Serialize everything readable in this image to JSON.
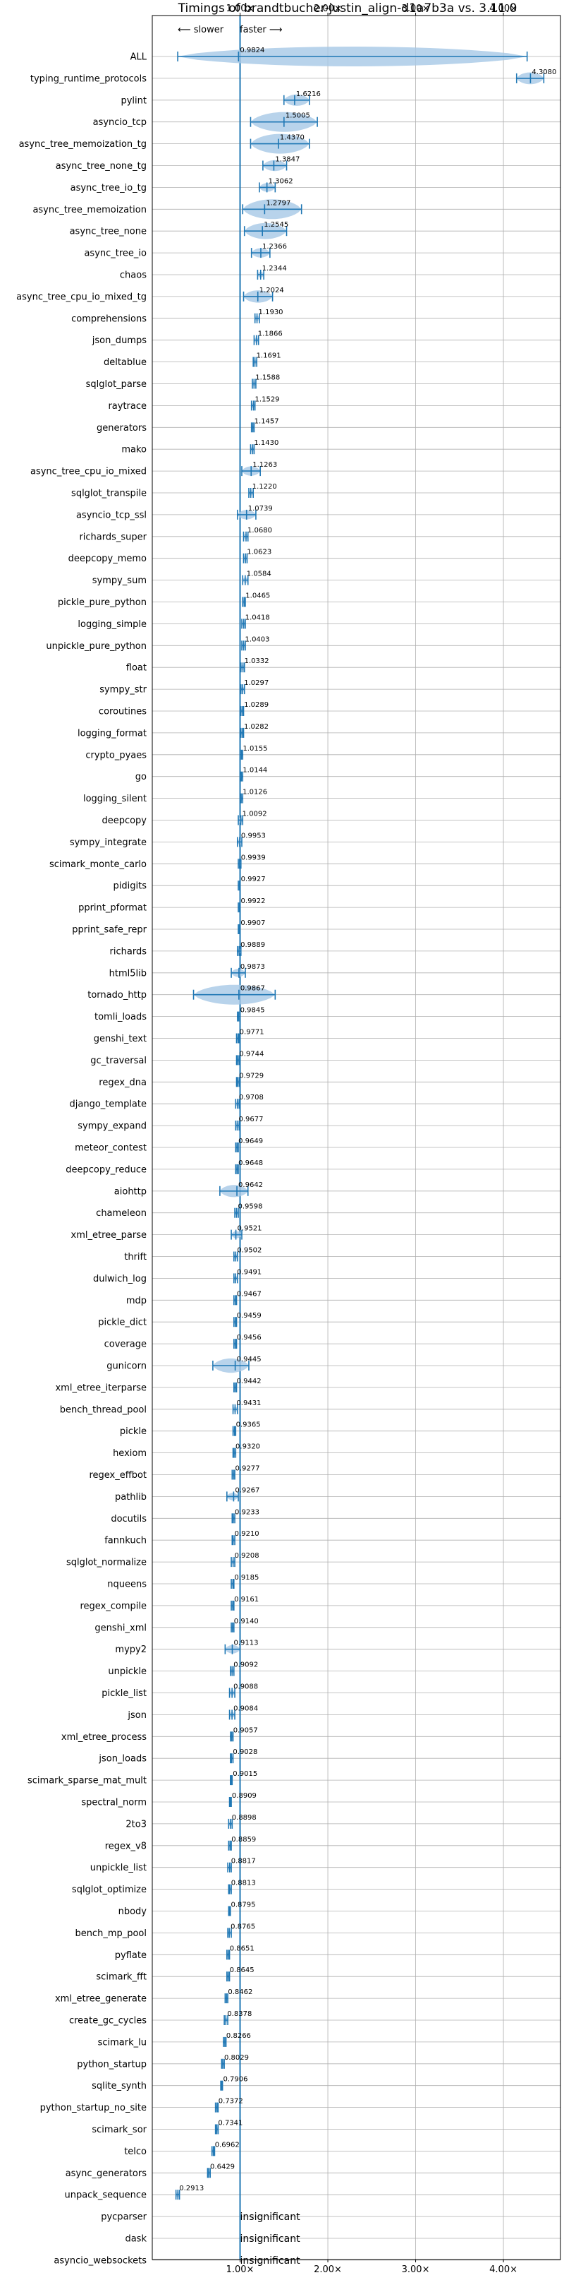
{
  "chart_data": {
    "type": "violin",
    "title": "Timings of brandtbucher-justin_align-d1a7b3a vs. 3.11.0",
    "xlabel": "",
    "ylabel": "",
    "xlim": [
      0.0,
      4.65
    ],
    "xticks": [
      1.0,
      2.0,
      3.0,
      4.0
    ],
    "xtick_labels": [
      "1.00×",
      "2.00×",
      "3.00×",
      "4.00×"
    ],
    "annotation_left": "⟵ slower",
    "annotation_right": "faster ⟶",
    "grid": true,
    "colors": {
      "violin": "#a6c8e6",
      "line": "#1f77b4",
      "axis_line": "#1f77b4",
      "grid": "#b0b0b0"
    },
    "insignificant_label": "insignificant",
    "benchmarks": [
      {
        "name": "ALL",
        "value": 0.9824,
        "label": "0.9824",
        "lo": 0.29,
        "hi": 4.27
      },
      {
        "name": "typing_runtime_protocols",
        "value": 4.308,
        "label": "4.3080",
        "lo": 4.15,
        "hi": 4.46
      },
      {
        "name": "pylint",
        "value": 1.6216,
        "label": "1.6216",
        "lo": 1.5,
        "hi": 1.79
      },
      {
        "name": "asyncio_tcp",
        "value": 1.5005,
        "label": "1.5005",
        "lo": 1.12,
        "hi": 1.88
      },
      {
        "name": "async_tree_memoization_tg",
        "value": 1.437,
        "label": "1.4370",
        "lo": 1.12,
        "hi": 1.79
      },
      {
        "name": "async_tree_none_tg",
        "value": 1.3847,
        "label": "1.3847",
        "lo": 1.26,
        "hi": 1.53
      },
      {
        "name": "async_tree_io_tg",
        "value": 1.3062,
        "label": "1.3062",
        "lo": 1.22,
        "hi": 1.4
      },
      {
        "name": "async_tree_memoization",
        "value": 1.2797,
        "label": "1.2797",
        "lo": 1.03,
        "hi": 1.7
      },
      {
        "name": "async_tree_none",
        "value": 1.2545,
        "label": "1.2545",
        "lo": 1.05,
        "hi": 1.53
      },
      {
        "name": "async_tree_io",
        "value": 1.2366,
        "label": "1.2366",
        "lo": 1.13,
        "hi": 1.34
      },
      {
        "name": "chaos",
        "value": 1.2344,
        "label": "1.2344",
        "lo": 1.2,
        "hi": 1.27
      },
      {
        "name": "async_tree_cpu_io_mixed_tg",
        "value": 1.2024,
        "label": "1.2024",
        "lo": 1.04,
        "hi": 1.37
      },
      {
        "name": "comprehensions",
        "value": 1.193,
        "label": "1.1930",
        "lo": 1.17,
        "hi": 1.22
      },
      {
        "name": "json_dumps",
        "value": 1.1866,
        "label": "1.1866",
        "lo": 1.16,
        "hi": 1.21
      },
      {
        "name": "deltablue",
        "value": 1.1691,
        "label": "1.1691",
        "lo": 1.15,
        "hi": 1.19
      },
      {
        "name": "sqlglot_parse",
        "value": 1.1588,
        "label": "1.1588",
        "lo": 1.14,
        "hi": 1.18
      },
      {
        "name": "raytrace",
        "value": 1.1529,
        "label": "1.1529",
        "lo": 1.13,
        "hi": 1.17
      },
      {
        "name": "generators",
        "value": 1.1457,
        "label": "1.1457",
        "lo": 1.13,
        "hi": 1.16
      },
      {
        "name": "mako",
        "value": 1.143,
        "label": "1.1430",
        "lo": 1.12,
        "hi": 1.16
      },
      {
        "name": "async_tree_cpu_io_mixed",
        "value": 1.1263,
        "label": "1.1263",
        "lo": 1.02,
        "hi": 1.23
      },
      {
        "name": "sqlglot_transpile",
        "value": 1.122,
        "label": "1.1220",
        "lo": 1.1,
        "hi": 1.15
      },
      {
        "name": "asyncio_tcp_ssl",
        "value": 1.0739,
        "label": "1.0739",
        "lo": 0.97,
        "hi": 1.18
      },
      {
        "name": "richards_super",
        "value": 1.068,
        "label": "1.0680",
        "lo": 1.04,
        "hi": 1.09
      },
      {
        "name": "deepcopy_memo",
        "value": 1.0623,
        "label": "1.0623",
        "lo": 1.04,
        "hi": 1.08
      },
      {
        "name": "sympy_sum",
        "value": 1.0584,
        "label": "1.0584",
        "lo": 1.03,
        "hi": 1.09
      },
      {
        "name": "pickle_pure_python",
        "value": 1.0465,
        "label": "1.0465",
        "lo": 1.03,
        "hi": 1.06
      },
      {
        "name": "logging_simple",
        "value": 1.0418,
        "label": "1.0418",
        "lo": 1.02,
        "hi": 1.06
      },
      {
        "name": "unpickle_pure_python",
        "value": 1.0403,
        "label": "1.0403",
        "lo": 1.02,
        "hi": 1.06
      },
      {
        "name": "float",
        "value": 1.0332,
        "label": "1.0332",
        "lo": 1.01,
        "hi": 1.05
      },
      {
        "name": "sympy_str",
        "value": 1.0297,
        "label": "1.0297",
        "lo": 1.01,
        "hi": 1.05
      },
      {
        "name": "coroutines",
        "value": 1.0289,
        "label": "1.0289",
        "lo": 1.01,
        "hi": 1.04
      },
      {
        "name": "logging_format",
        "value": 1.0282,
        "label": "1.0282",
        "lo": 1.01,
        "hi": 1.04
      },
      {
        "name": "crypto_pyaes",
        "value": 1.0155,
        "label": "1.0155",
        "lo": 1.0,
        "hi": 1.03
      },
      {
        "name": "go",
        "value": 1.0144,
        "label": "1.0144",
        "lo": 1.0,
        "hi": 1.03
      },
      {
        "name": "logging_silent",
        "value": 1.0126,
        "label": "1.0126",
        "lo": 1.0,
        "hi": 1.03
      },
      {
        "name": "deepcopy",
        "value": 1.0092,
        "label": "1.0092",
        "lo": 0.98,
        "hi": 1.03
      },
      {
        "name": "sympy_integrate",
        "value": 0.9953,
        "label": "0.9953",
        "lo": 0.97,
        "hi": 1.02
      },
      {
        "name": "scimark_monte_carlo",
        "value": 0.9939,
        "label": "0.9939",
        "lo": 0.98,
        "hi": 1.01
      },
      {
        "name": "pidigits",
        "value": 0.9927,
        "label": "0.9927",
        "lo": 0.98,
        "hi": 1.0
      },
      {
        "name": "pprint_pformat",
        "value": 0.9922,
        "label": "0.9922",
        "lo": 0.98,
        "hi": 1.0
      },
      {
        "name": "pprint_safe_repr",
        "value": 0.9907,
        "label": "0.9907",
        "lo": 0.98,
        "hi": 1.0
      },
      {
        "name": "richards",
        "value": 0.9889,
        "label": "0.9889",
        "lo": 0.97,
        "hi": 1.01
      },
      {
        "name": "html5lib",
        "value": 0.9873,
        "label": "0.9873",
        "lo": 0.9,
        "hi": 1.06
      },
      {
        "name": "tornado_http",
        "value": 0.9867,
        "label": "0.9867",
        "lo": 0.47,
        "hi": 1.4
      },
      {
        "name": "tomli_loads",
        "value": 0.9845,
        "label": "0.9845",
        "lo": 0.97,
        "hi": 1.0
      },
      {
        "name": "genshi_text",
        "value": 0.9771,
        "label": "0.9771",
        "lo": 0.96,
        "hi": 0.99
      },
      {
        "name": "gc_traversal",
        "value": 0.9744,
        "label": "0.9744",
        "lo": 0.96,
        "hi": 0.99
      },
      {
        "name": "regex_dna",
        "value": 0.9729,
        "label": "0.9729",
        "lo": 0.96,
        "hi": 0.99
      },
      {
        "name": "django_template",
        "value": 0.9708,
        "label": "0.9708",
        "lo": 0.95,
        "hi": 0.99
      },
      {
        "name": "sympy_expand",
        "value": 0.9677,
        "label": "0.9677",
        "lo": 0.95,
        "hi": 0.99
      },
      {
        "name": "meteor_contest",
        "value": 0.9649,
        "label": "0.9649",
        "lo": 0.95,
        "hi": 0.98
      },
      {
        "name": "deepcopy_reduce",
        "value": 0.9648,
        "label": "0.9648",
        "lo": 0.95,
        "hi": 0.98
      },
      {
        "name": "aiohttp",
        "value": 0.9642,
        "label": "0.9642",
        "lo": 0.77,
        "hi": 1.09
      },
      {
        "name": "chameleon",
        "value": 0.9598,
        "label": "0.9598",
        "lo": 0.94,
        "hi": 0.98
      },
      {
        "name": "xml_etree_parse",
        "value": 0.9521,
        "label": "0.9521",
        "lo": 0.9,
        "hi": 1.02
      },
      {
        "name": "thrift",
        "value": 0.9502,
        "label": "0.9502",
        "lo": 0.93,
        "hi": 0.97
      },
      {
        "name": "dulwich_log",
        "value": 0.9491,
        "label": "0.9491",
        "lo": 0.93,
        "hi": 0.97
      },
      {
        "name": "mdp",
        "value": 0.9467,
        "label": "0.9467",
        "lo": 0.93,
        "hi": 0.96
      },
      {
        "name": "pickle_dict",
        "value": 0.9459,
        "label": "0.9459",
        "lo": 0.93,
        "hi": 0.96
      },
      {
        "name": "coverage",
        "value": 0.9456,
        "label": "0.9456",
        "lo": 0.93,
        "hi": 0.96
      },
      {
        "name": "gunicorn",
        "value": 0.9445,
        "label": "0.9445",
        "lo": 0.69,
        "hi": 1.1
      },
      {
        "name": "xml_etree_iterparse",
        "value": 0.9442,
        "label": "0.9442",
        "lo": 0.93,
        "hi": 0.96
      },
      {
        "name": "bench_thread_pool",
        "value": 0.9431,
        "label": "0.9431",
        "lo": 0.92,
        "hi": 0.97
      },
      {
        "name": "pickle",
        "value": 0.9365,
        "label": "0.9365",
        "lo": 0.92,
        "hi": 0.95
      },
      {
        "name": "hexiom",
        "value": 0.932,
        "label": "0.9320",
        "lo": 0.92,
        "hi": 0.95
      },
      {
        "name": "regex_effbot",
        "value": 0.9277,
        "label": "0.9277",
        "lo": 0.91,
        "hi": 0.94
      },
      {
        "name": "pathlib",
        "value": 0.9267,
        "label": "0.9267",
        "lo": 0.85,
        "hi": 0.98
      },
      {
        "name": "docutils",
        "value": 0.9233,
        "label": "0.9233",
        "lo": 0.91,
        "hi": 0.94
      },
      {
        "name": "fannkuch",
        "value": 0.921,
        "label": "0.9210",
        "lo": 0.91,
        "hi": 0.94
      },
      {
        "name": "sqlglot_normalize",
        "value": 0.9208,
        "label": "0.9208",
        "lo": 0.9,
        "hi": 0.94
      },
      {
        "name": "nqueens",
        "value": 0.9185,
        "label": "0.9185",
        "lo": 0.9,
        "hi": 0.93
      },
      {
        "name": "regex_compile",
        "value": 0.9161,
        "label": "0.9161",
        "lo": 0.9,
        "hi": 0.93
      },
      {
        "name": "genshi_xml",
        "value": 0.914,
        "label": "0.9140",
        "lo": 0.9,
        "hi": 0.93
      },
      {
        "name": "mypy2",
        "value": 0.9113,
        "label": "0.9113",
        "lo": 0.83,
        "hi": 1.0
      },
      {
        "name": "unpickle",
        "value": 0.9092,
        "label": "0.9092",
        "lo": 0.89,
        "hi": 0.93
      },
      {
        "name": "pickle_list",
        "value": 0.9088,
        "label": "0.9088",
        "lo": 0.88,
        "hi": 0.94
      },
      {
        "name": "json",
        "value": 0.9084,
        "label": "0.9084",
        "lo": 0.88,
        "hi": 0.94
      },
      {
        "name": "xml_etree_process",
        "value": 0.9057,
        "label": "0.9057",
        "lo": 0.89,
        "hi": 0.92
      },
      {
        "name": "json_loads",
        "value": 0.9028,
        "label": "0.9028",
        "lo": 0.89,
        "hi": 0.92
      },
      {
        "name": "scimark_sparse_mat_mult",
        "value": 0.9015,
        "label": "0.9015",
        "lo": 0.89,
        "hi": 0.91
      },
      {
        "name": "spectral_norm",
        "value": 0.8909,
        "label": "0.8909",
        "lo": 0.88,
        "hi": 0.9
      },
      {
        "name": "2to3",
        "value": 0.8898,
        "label": "0.8898",
        "lo": 0.87,
        "hi": 0.91
      },
      {
        "name": "regex_v8",
        "value": 0.8859,
        "label": "0.8859",
        "lo": 0.87,
        "hi": 0.9
      },
      {
        "name": "unpickle_list",
        "value": 0.8817,
        "label": "0.8817",
        "lo": 0.86,
        "hi": 0.9
      },
      {
        "name": "sqlglot_optimize",
        "value": 0.8813,
        "label": "0.8813",
        "lo": 0.87,
        "hi": 0.9
      },
      {
        "name": "nbody",
        "value": 0.8795,
        "label": "0.8795",
        "lo": 0.87,
        "hi": 0.89
      },
      {
        "name": "bench_mp_pool",
        "value": 0.8765,
        "label": "0.8765",
        "lo": 0.86,
        "hi": 0.9
      },
      {
        "name": "pyflate",
        "value": 0.8651,
        "label": "0.8651",
        "lo": 0.85,
        "hi": 0.88
      },
      {
        "name": "scimark_fft",
        "value": 0.8645,
        "label": "0.8645",
        "lo": 0.85,
        "hi": 0.88
      },
      {
        "name": "xml_etree_generate",
        "value": 0.8462,
        "label": "0.8462",
        "lo": 0.83,
        "hi": 0.86
      },
      {
        "name": "create_gc_cycles",
        "value": 0.8378,
        "label": "0.8378",
        "lo": 0.82,
        "hi": 0.86
      },
      {
        "name": "scimark_lu",
        "value": 0.8266,
        "label": "0.8266",
        "lo": 0.81,
        "hi": 0.84
      },
      {
        "name": "python_startup",
        "value": 0.8029,
        "label": "0.8029",
        "lo": 0.79,
        "hi": 0.82
      },
      {
        "name": "sqlite_synth",
        "value": 0.7906,
        "label": "0.7906",
        "lo": 0.78,
        "hi": 0.8
      },
      {
        "name": "python_startup_no_site",
        "value": 0.7372,
        "label": "0.7372",
        "lo": 0.72,
        "hi": 0.75
      },
      {
        "name": "scimark_sor",
        "value": 0.7341,
        "label": "0.7341",
        "lo": 0.72,
        "hi": 0.75
      },
      {
        "name": "telco",
        "value": 0.6962,
        "label": "0.6962",
        "lo": 0.68,
        "hi": 0.71
      },
      {
        "name": "async_generators",
        "value": 0.6429,
        "label": "0.6429",
        "lo": 0.63,
        "hi": 0.66
      },
      {
        "name": "unpack_sequence",
        "value": 0.2913,
        "label": "0.2913",
        "lo": 0.27,
        "hi": 0.31
      },
      {
        "name": "pycparser",
        "value": null,
        "label": null
      },
      {
        "name": "dask",
        "value": null,
        "label": null
      },
      {
        "name": "asyncio_websockets",
        "value": null,
        "label": null
      }
    ]
  }
}
